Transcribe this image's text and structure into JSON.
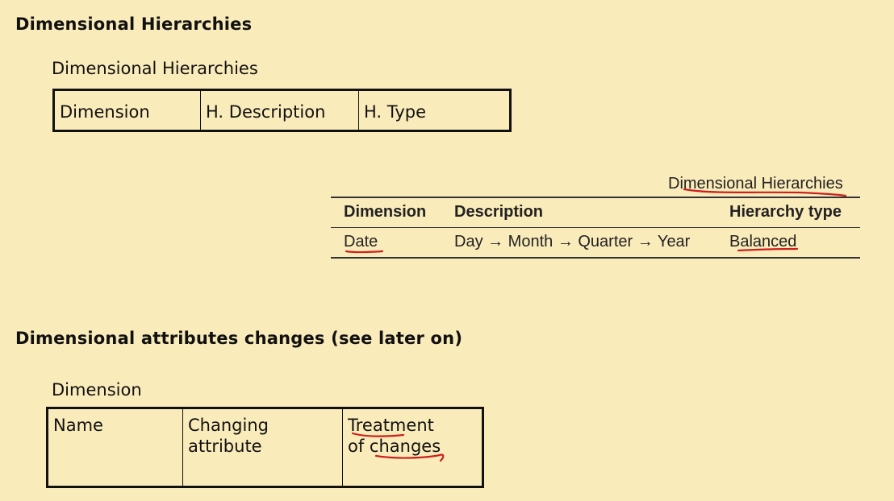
{
  "section1": {
    "heading": "Dimensional Hierarchies",
    "box_title": "Dimensional Hierarchies",
    "box_columns": [
      "Dimension",
      "H. Description",
      "H. Type"
    ]
  },
  "example_table": {
    "caption": "Dimensional Hierarchies",
    "headers": {
      "dimension": "Dimension",
      "description": "Description",
      "hierarchy_type": "Hierarchy type"
    },
    "rows": [
      {
        "dimension": "Date",
        "description": "Day → Month → Quarter → Year",
        "hierarchy_type": "Balanced"
      }
    ]
  },
  "section2": {
    "heading": "Dimensional attributes changes (see later on)",
    "box_title": "Dimension",
    "box_columns": [
      {
        "line1": "Name",
        "line2": ""
      },
      {
        "line1": "Changing",
        "line2": "attribute"
      },
      {
        "line1": "Treatment",
        "line2": "of changes"
      }
    ]
  },
  "colors": {
    "background": "#faebba",
    "ink": "#111111",
    "annotation": "#cc1f1f"
  }
}
